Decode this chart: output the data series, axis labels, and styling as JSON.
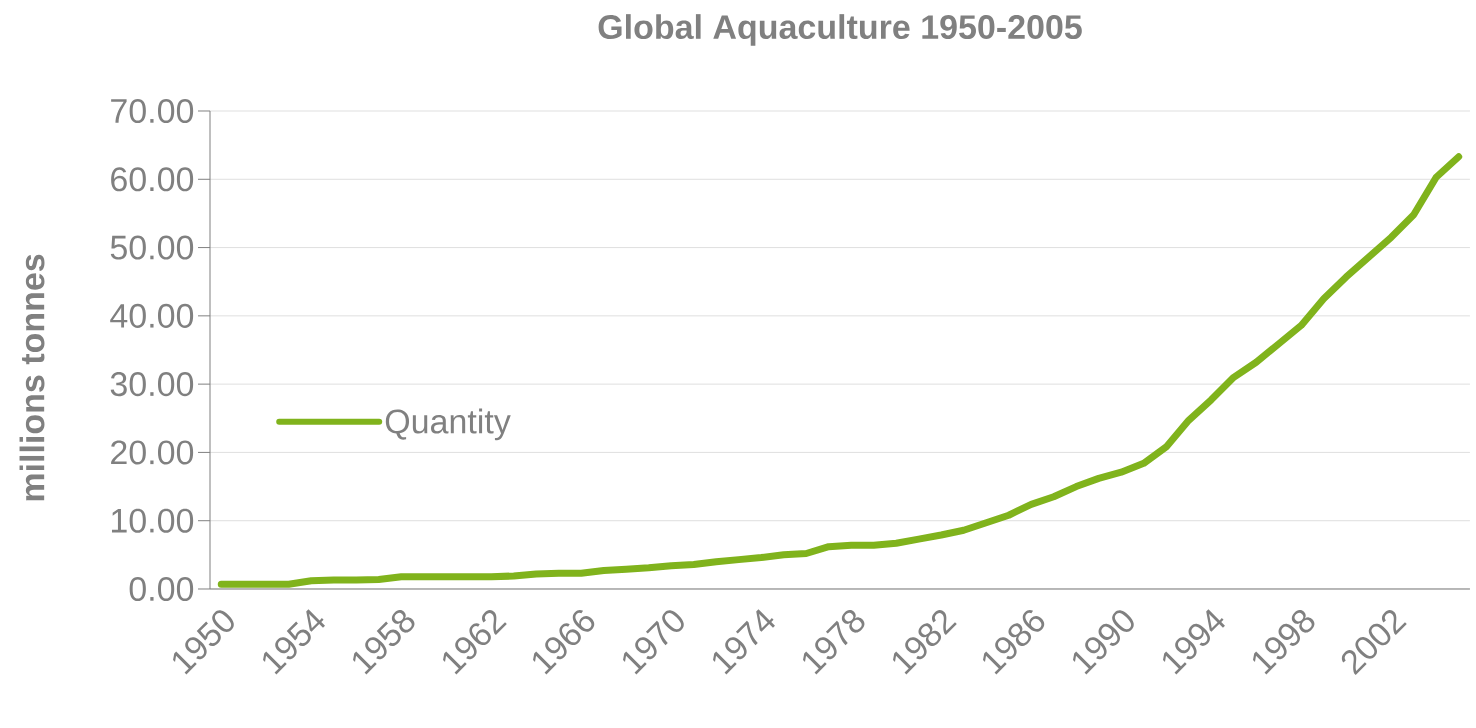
{
  "chart_data": {
    "type": "line",
    "title": "Global Aquaculture 1950-2005",
    "ylabel": "millions tonnes",
    "categories": [
      "1950",
      null,
      null,
      null,
      "1954",
      null,
      null,
      null,
      "1958",
      null,
      null,
      null,
      "1962",
      null,
      null,
      null,
      "1966",
      null,
      null,
      null,
      "1970",
      null,
      null,
      null,
      "1974",
      null,
      null,
      null,
      "1978",
      null,
      null,
      null,
      "1982",
      null,
      null,
      null,
      "1986",
      null,
      null,
      null,
      "1990",
      null,
      null,
      null,
      "1994",
      null,
      null,
      null,
      "1998",
      null,
      null,
      null,
      "2002",
      null,
      null,
      null
    ],
    "series": [
      {
        "name": "Quantity",
        "color": "#80b31c",
        "values": [
          0.7,
          0.7,
          0.7,
          0.7,
          1.2,
          1.3,
          1.3,
          1.4,
          1.8,
          1.8,
          1.8,
          1.8,
          1.8,
          1.9,
          2.2,
          2.3,
          2.3,
          2.7,
          2.9,
          3.1,
          3.4,
          3.6,
          4.0,
          4.3,
          4.6,
          5.0,
          5.2,
          6.2,
          6.4,
          6.4,
          6.7,
          7.3,
          7.9,
          8.6,
          9.7,
          10.8,
          12.4,
          13.5,
          15.0,
          16.2,
          17.1,
          18.4,
          20.8,
          24.7,
          27.7,
          31.0,
          33.2,
          35.9,
          38.6,
          42.5,
          45.7,
          48.6,
          51.5,
          54.8,
          60.3,
          63.3
        ]
      }
    ],
    "ylim": [
      0,
      70
    ],
    "yticks": [
      {
        "value": 0,
        "label": "0.00"
      },
      {
        "value": 10,
        "label": "10.00"
      },
      {
        "value": 20,
        "label": "20.00"
      },
      {
        "value": 30,
        "label": "30.00"
      },
      {
        "value": 40,
        "label": "40.00"
      },
      {
        "value": 50,
        "label": "50.00"
      },
      {
        "value": 60,
        "label": "60.00"
      },
      {
        "value": 70,
        "label": "70.00"
      }
    ],
    "grid": "y",
    "legend": "left",
    "marker": "none",
    "line_style": "solid"
  }
}
